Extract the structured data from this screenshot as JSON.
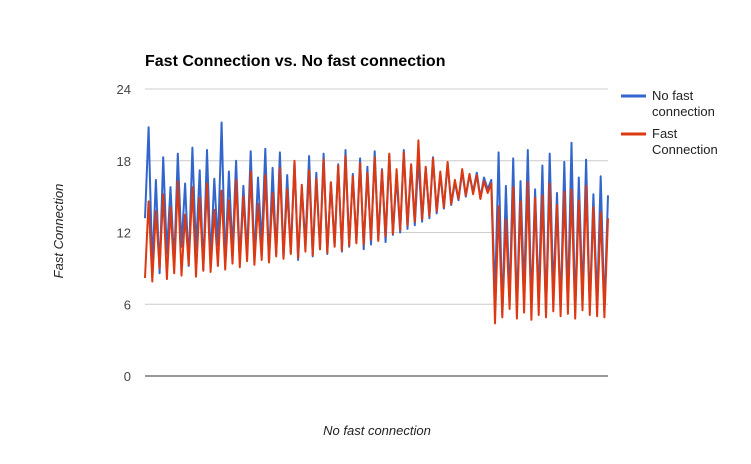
{
  "chart_data": {
    "type": "line",
    "title": "Fast Connection vs. No fast connection",
    "xlabel": "No fast connection",
    "ylabel": "Fast Connection",
    "ylim": [
      0,
      24
    ],
    "yticks": [
      0,
      6,
      12,
      18,
      24
    ],
    "grid": true,
    "legend_position": "right",
    "series": [
      {
        "name": "No fast connection",
        "color": "#3366cc",
        "values": [
          13.2,
          20.8,
          9.1,
          16.4,
          8.6,
          18.3,
          10.2,
          15.8,
          9.4,
          18.6,
          10.8,
          16.1,
          9.2,
          19.1,
          10.5,
          17.2,
          8.9,
          18.9,
          9.7,
          16.5,
          10.9,
          21.2,
          9.3,
          17.1,
          10.4,
          18.0,
          9.6,
          15.9,
          10.1,
          18.8,
          9.8,
          16.6,
          11.0,
          19.0,
          9.5,
          17.4,
          10.2,
          18.7,
          9.9,
          16.8,
          10.3,
          17.9,
          9.7,
          15.7,
          11.1,
          18.4,
          10.0,
          17.0,
          10.6,
          18.6,
          10.2,
          16.2,
          10.9,
          17.7,
          10.4,
          18.9,
          10.8,
          16.9,
          11.2,
          18.2,
          10.6,
          17.5,
          11.0,
          18.8,
          11.4,
          17.3,
          11.2,
          18.5,
          11.8,
          16.7,
          12.0,
          18.9,
          12.3,
          17.6,
          12.6,
          18.1,
          12.9,
          17.4,
          13.2,
          18.3,
          13.6,
          16.9,
          14.0,
          17.8,
          14.3,
          16.2,
          14.7,
          17.1,
          15.0,
          16.8,
          15.4,
          17.0,
          14.9,
          16.6,
          15.6,
          16.4,
          6.5,
          18.7,
          5.1,
          15.9,
          6.2,
          18.2,
          5.4,
          16.3,
          7.0,
          18.9,
          5.8,
          15.6,
          6.4,
          17.6,
          5.2,
          18.6,
          6.8,
          15.3,
          5.5,
          17.9,
          6.1,
          19.5,
          5.3,
          16.6,
          6.6,
          18.1,
          5.6,
          15.2,
          6.0,
          16.7,
          5.4,
          15.1
        ]
      },
      {
        "name": "Fast Connection",
        "color": "#dc3912",
        "values": [
          8.2,
          14.6,
          7.9,
          13.8,
          9.0,
          15.2,
          8.1,
          14.1,
          8.6,
          16.3,
          8.4,
          13.5,
          9.3,
          15.8,
          8.3,
          14.9,
          8.8,
          16.1,
          8.7,
          13.9,
          9.2,
          15.5,
          8.9,
          14.7,
          9.4,
          16.4,
          9.1,
          15.0,
          9.6,
          17.1,
          9.3,
          14.4,
          9.7,
          16.8,
          9.5,
          15.3,
          10.0,
          17.4,
          9.8,
          15.6,
          10.2,
          18.0,
          9.9,
          16.0,
          10.4,
          17.2,
          10.1,
          16.5,
          10.6,
          18.1,
          10.3,
          16.2,
          10.8,
          17.6,
          10.5,
          18.4,
          10.9,
          16.7,
          11.1,
          17.8,
          11.0,
          17.0,
          11.4,
          18.3,
          11.3,
          17.2,
          11.7,
          18.6,
          11.9,
          17.3,
          12.2,
          18.7,
          12.6,
          17.7,
          12.9,
          19.7,
          13.1,
          17.5,
          13.4,
          18.2,
          13.8,
          17.1,
          14.1,
          17.9,
          14.4,
          16.4,
          14.8,
          17.3,
          15.1,
          16.9,
          15.2,
          16.8,
          14.8,
          16.3,
          15.3,
          16.1,
          4.4,
          14.2,
          4.9,
          13.1,
          5.6,
          15.8,
          4.8,
          14.6,
          5.3,
          16.2,
          4.7,
          14.9,
          5.1,
          15.1,
          4.9,
          16.1,
          5.4,
          14.3,
          5.0,
          15.4,
          5.2,
          15.6,
          4.8,
          14.7,
          5.5,
          15.9,
          5.1,
          14.1,
          5.0,
          13.7,
          4.9,
          13.2
        ]
      }
    ]
  }
}
